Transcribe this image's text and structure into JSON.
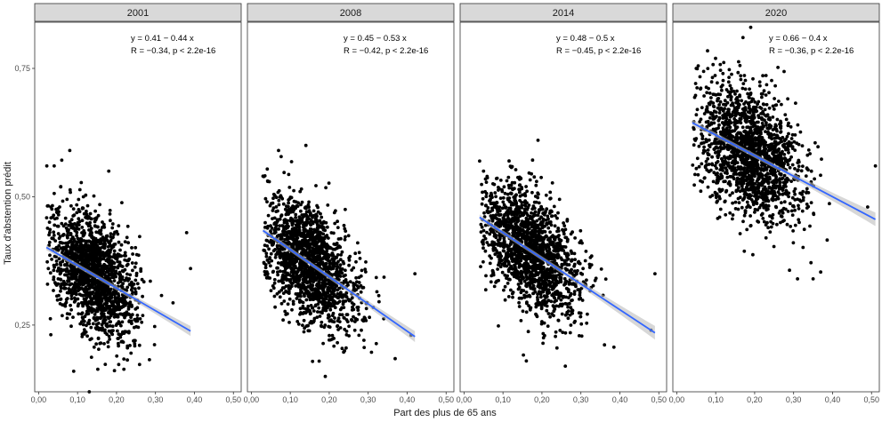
{
  "chart_data": {
    "type": "scatter",
    "xlabel": "Part des plus de 65 ans",
    "ylabel": "Taux d'abstention prédit",
    "xlim": [
      -0.01,
      0.52
    ],
    "ylim": [
      0.12,
      0.84
    ],
    "xticks": [
      "0,00",
      "0,10",
      "0,20",
      "0,30",
      "0,40",
      "0,50"
    ],
    "xtick_values": [
      0,
      0.1,
      0.2,
      0.3,
      0.4,
      0.5
    ],
    "yticks": [
      "0,25",
      "0,50",
      "0,75"
    ],
    "ytick_values": [
      0.25,
      0.5,
      0.75
    ],
    "grid": false,
    "point_color": "#000000",
    "line_color": "#3366FF",
    "ribbon_color": "#BDBDBD",
    "strip_fill": "#D9D9D9",
    "panels": [
      {
        "label": "2001",
        "eq": "y = 0.41 − 0.44 x",
        "stat": "R = −0.34, p < 2.2e-16",
        "intercept": 0.41,
        "slope": -0.44,
        "line_x": [
          0.02,
          0.39
        ],
        "cloud": {
          "x_center": 0.14,
          "x_sd": 0.055,
          "x_min": 0.02,
          "x_max": 0.4,
          "y_sd": 0.055,
          "y_min": 0.13,
          "y_max": 0.59,
          "n": 1700
        },
        "outliers": [
          [
            0.08,
            0.59
          ],
          [
            0.18,
            0.55
          ],
          [
            0.39,
            0.36
          ],
          [
            0.38,
            0.43
          ],
          [
            0.09,
            0.16
          ],
          [
            0.13,
            0.12
          ],
          [
            0.04,
            0.56
          ]
        ]
      },
      {
        "label": "2008",
        "eq": "y = 0.45 − 0.53 x",
        "stat": "R = −0.42, p < 2.2e-16",
        "intercept": 0.45,
        "slope": -0.53,
        "line_x": [
          0.03,
          0.42
        ],
        "cloud": {
          "x_center": 0.15,
          "x_sd": 0.06,
          "x_min": 0.03,
          "x_max": 0.42,
          "y_sd": 0.055,
          "y_min": 0.15,
          "y_max": 0.6,
          "n": 1700
        },
        "outliers": [
          [
            0.14,
            0.6
          ],
          [
            0.07,
            0.59
          ],
          [
            0.42,
            0.35
          ],
          [
            0.41,
            0.23
          ],
          [
            0.19,
            0.15
          ],
          [
            0.03,
            0.54
          ]
        ]
      },
      {
        "label": "2014",
        "eq": "y = 0.48 − 0.5 x",
        "stat": "R = −0.45, p < 2.2e-16",
        "intercept": 0.48,
        "slope": -0.5,
        "line_x": [
          0.04,
          0.49
        ],
        "cloud": {
          "x_center": 0.17,
          "x_sd": 0.065,
          "x_min": 0.04,
          "x_max": 0.49,
          "y_sd": 0.055,
          "y_min": 0.17,
          "y_max": 0.61,
          "n": 1700
        },
        "outliers": [
          [
            0.19,
            0.61
          ],
          [
            0.49,
            0.35
          ],
          [
            0.48,
            0.24
          ],
          [
            0.16,
            0.18
          ],
          [
            0.26,
            0.17
          ],
          [
            0.05,
            0.55
          ]
        ]
      },
      {
        "label": "2020",
        "eq": "y = 0.66 − 0.4 x",
        "stat": "R = −0.36, p < 2.2e-16",
        "intercept": 0.66,
        "slope": -0.4,
        "line_x": [
          0.04,
          0.51
        ],
        "cloud": {
          "x_center": 0.19,
          "x_sd": 0.065,
          "x_min": 0.04,
          "x_max": 0.51,
          "y_sd": 0.06,
          "y_min": 0.34,
          "y_max": 0.83,
          "n": 1700
        },
        "outliers": [
          [
            0.19,
            0.83
          ],
          [
            0.17,
            0.81
          ],
          [
            0.51,
            0.56
          ],
          [
            0.49,
            0.48
          ],
          [
            0.31,
            0.34
          ],
          [
            0.35,
            0.34
          ],
          [
            0.05,
            0.75
          ]
        ]
      }
    ]
  }
}
